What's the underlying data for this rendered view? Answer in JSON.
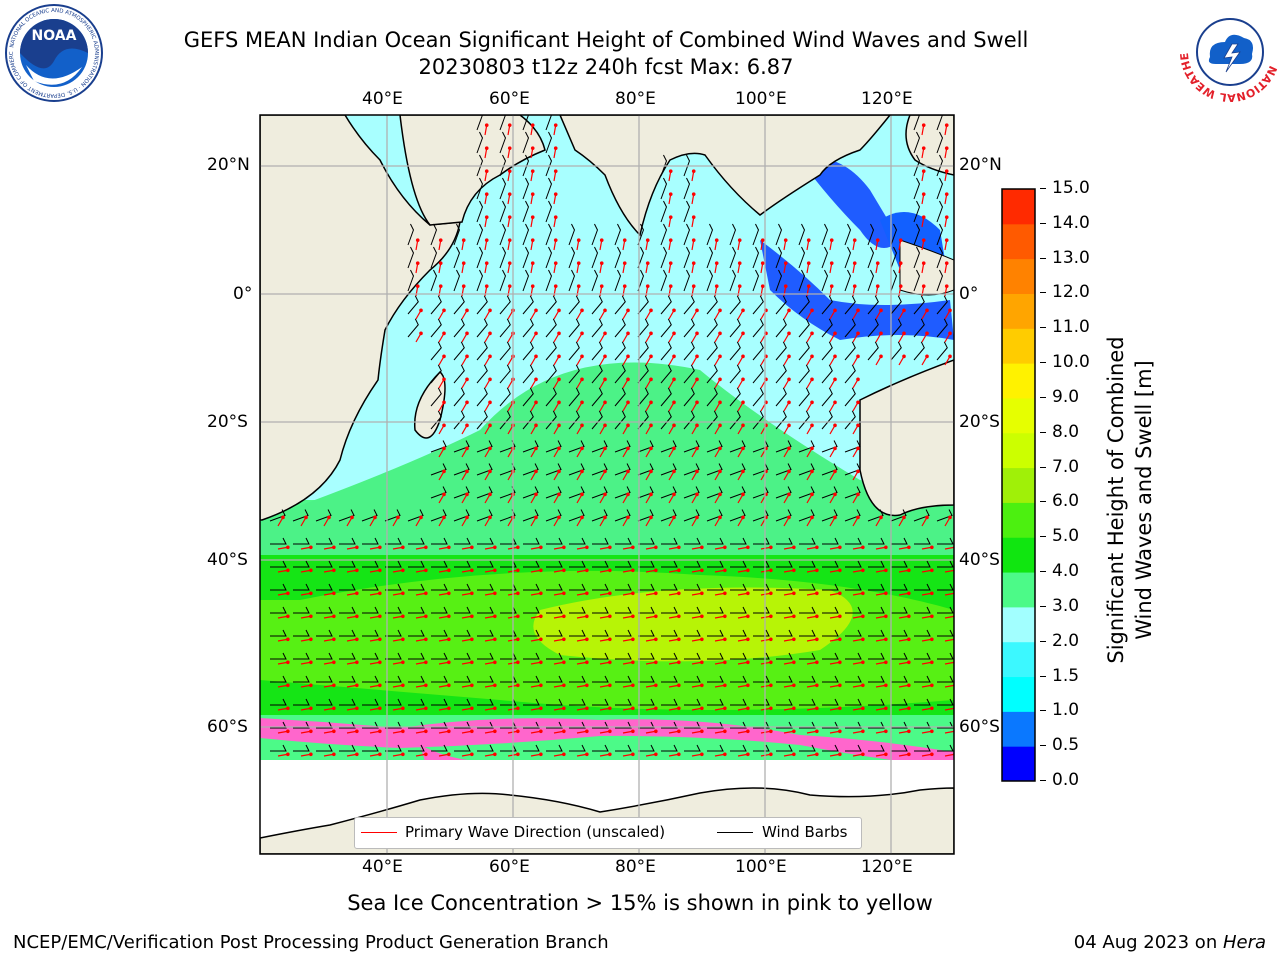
{
  "header": {
    "title": "GEFS MEAN Indian Ocean Significant Height of Combined Wind Waves and Swell",
    "subtitle": "20230803 t12z 240h fcst   Max: 6.87"
  },
  "logos": {
    "left": {
      "name": "noaa-logo",
      "text": "NOAA",
      "ring_text": "NATIONAL OCEANIC AND ATMOSPHERIC ADMINISTRATION · U.S. DEPARTMENT OF COMMERCE"
    },
    "right": {
      "name": "nws-logo",
      "ring_text": "NATIONAL WEATHER SERVICE"
    }
  },
  "map": {
    "lon_range": [
      20,
      130
    ],
    "lat_range": [
      -74,
      27
    ],
    "lon_ticks": [
      "40°E",
      "60°E",
      "80°E",
      "100°E",
      "120°E"
    ],
    "lat_ticks": [
      "20°N",
      "0°",
      "20°S",
      "40°S",
      "60°S"
    ],
    "grid": true,
    "land_color": "#efedde",
    "ice_note": "Sea Ice Concentration > 15% is shown in pink to yellow"
  },
  "legend": {
    "placement": "bottom-center",
    "items": [
      {
        "label": "Primary Wave Direction (unscaled)",
        "color": "#ff0000"
      },
      {
        "label": "Wind Barbs",
        "color": "#000000"
      }
    ]
  },
  "colorbar": {
    "title_line1": "Significant Height of Combined",
    "title_line2": "Wind Waves and Swell [m]",
    "ticks": [
      "0.0",
      "0.5",
      "1.0",
      "1.5",
      "2.0",
      "3.0",
      "4.0",
      "5.0",
      "6.0",
      "7.0",
      "8.0",
      "9.0",
      "10.0",
      "11.0",
      "12.0",
      "13.0",
      "14.0",
      "15.0"
    ],
    "colors": [
      "#0000ff",
      "#0a78ff",
      "#00ffff",
      "#3cf8ff",
      "#a2ffff",
      "#4cfa88",
      "#10e610",
      "#4cf010",
      "#a0f008",
      "#ccff00",
      "#e6ff00",
      "#fff200",
      "#ffcc00",
      "#ffa500",
      "#ff8200",
      "#ff5a00",
      "#ff2a00",
      "#ff0000"
    ]
  },
  "footer": {
    "left": "NCEP/EMC/Verification Post Processing Product Generation Branch",
    "right_prefix": "04 Aug 2023 on ",
    "right_host": "Hera"
  }
}
